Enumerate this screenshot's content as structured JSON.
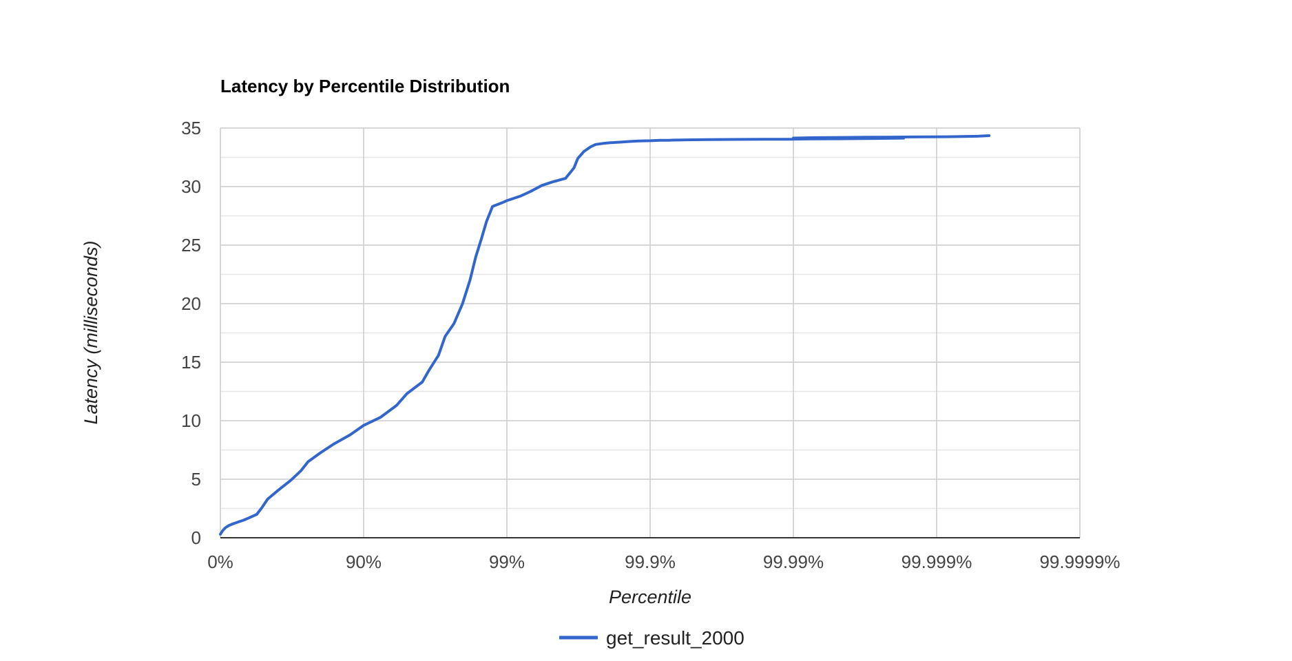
{
  "chart_data": {
    "type": "line",
    "title": "Latency by Percentile Distribution",
    "xlabel": "Percentile",
    "ylabel": "Latency (milliseconds)",
    "x_scale": "nines (-log10(1 - percentile))",
    "x_ticks": [
      "0%",
      "90%",
      "99%",
      "99.9%",
      "99.99%",
      "99.999%",
      "99.9999%"
    ],
    "y_ticks": [
      "0",
      "5",
      "10",
      "15",
      "20",
      "25",
      "30",
      "35"
    ],
    "ylim": [
      0,
      35
    ],
    "grid": true,
    "minor_gridlines": true,
    "legend_position": "bottom",
    "colors": {
      "series": "#3366cc",
      "grid_major": "#cccccc",
      "grid_minor": "#e6e6e6",
      "baseline": "#333333"
    },
    "series": [
      {
        "name": "get_result_2000",
        "x": [
          "0%",
          "3.5%",
          "7.7%",
          "12.9%",
          "18.7%",
          "25.1%",
          "31.1%",
          "36.9%",
          "44.3%",
          "48.9%",
          "53.2%",
          "60.9%",
          "67.7%",
          "72.5%",
          "75.6%",
          "80.2%",
          "83.8%",
          "87.6%",
          "90.0%",
          "92.4%",
          "94.1%",
          "95.0%",
          "96.1%",
          "96.5%",
          "97.0%",
          "97.3%",
          "97.66%",
          "97.96%",
          "98.19%",
          "98.35%",
          "98.49%",
          "98.61%",
          "98.74%",
          "98.91%",
          "99.0%",
          "99.2%",
          "99.32%",
          "99.43%",
          "99.52%",
          "99.61%",
          "99.66%",
          "99.68%",
          "99.71%",
          "99.74%",
          "99.76%",
          "99.79%",
          "99.81%",
          "99.84%",
          "99.86%",
          "99.88%",
          "99.90%",
          "99.915%",
          "99.926%",
          "99.93%",
          "99.94%",
          "99.95%",
          "99.96%",
          "99.973%",
          "99.984%",
          "99.989%",
          "99.9925%",
          "99.995%",
          "99.9967%",
          "99.9976%",
          "99.9983%",
          "99.99%",
          "99.9932%",
          "99.9955%",
          "99.997%",
          "99.998%",
          "99.9985%",
          "99.9988%",
          "99.99914%",
          "99.99934%",
          "99.99948%",
          "99.99957%"
        ],
        "values": [
          0.3,
          0.6,
          0.85,
          1.05,
          1.2,
          1.35,
          1.5,
          1.7,
          2.0,
          2.6,
          3.3,
          4.1,
          4.9,
          5.7,
          6.5,
          7.3,
          8.0,
          8.8,
          9.6,
          10.3,
          11.3,
          12.3,
          13.3,
          14.3,
          15.6,
          17.2,
          18.3,
          20.0,
          22.0,
          24.0,
          25.5,
          27.0,
          28.3,
          28.6,
          28.8,
          29.2,
          29.6,
          30.1,
          30.4,
          30.7,
          31.6,
          32.4,
          33.0,
          33.4,
          33.6,
          33.7,
          33.75,
          33.8,
          33.85,
          33.9,
          33.92,
          33.95,
          33.96,
          33.97,
          33.98,
          34.0,
          34.02,
          34.03,
          34.04,
          34.05,
          34.07,
          34.08,
          34.1,
          34.12,
          34.14,
          34.15,
          34.18,
          34.2,
          34.22,
          34.23,
          34.24,
          34.25,
          34.26,
          34.28,
          34.3,
          34.35
        ]
      }
    ]
  }
}
